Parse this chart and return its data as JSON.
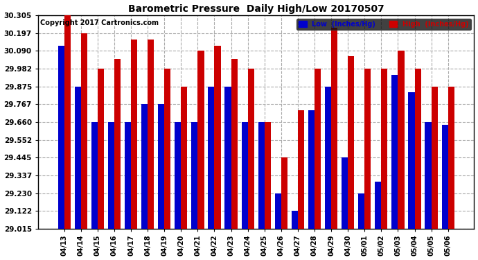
{
  "title": "Barometric Pressure  Daily High/Low 20170507",
  "copyright": "Copyright 2017 Cartronics.com",
  "legend_low": "Low  (Inches/Hg)",
  "legend_high": "High  (Inches/Hg)",
  "low_color": "#0000cc",
  "high_color": "#cc0000",
  "background_color": "#ffffff",
  "grid_color": "#aaaaaa",
  "ylim": [
    29.015,
    30.305
  ],
  "yticks": [
    29.015,
    29.122,
    29.23,
    29.337,
    29.445,
    29.552,
    29.66,
    29.767,
    29.875,
    29.982,
    30.09,
    30.197,
    30.305
  ],
  "dates": [
    "04/13",
    "04/14",
    "04/15",
    "04/16",
    "04/17",
    "04/18",
    "04/19",
    "04/20",
    "04/21",
    "04/22",
    "04/23",
    "04/24",
    "04/25",
    "04/26",
    "04/27",
    "04/28",
    "04/29",
    "04/30",
    "05/01",
    "05/02",
    "05/03",
    "05/04",
    "05/05",
    "05/06"
  ],
  "high_values": [
    30.305,
    30.197,
    29.982,
    30.043,
    30.16,
    30.16,
    29.982,
    29.875,
    30.09,
    30.12,
    30.043,
    29.982,
    29.66,
    29.445,
    29.73,
    29.982,
    30.23,
    30.06,
    29.982,
    29.982,
    30.09,
    29.982,
    29.875,
    29.875
  ],
  "low_values": [
    30.12,
    29.875,
    29.66,
    29.66,
    29.66,
    29.767,
    29.767,
    29.66,
    29.66,
    29.875,
    29.875,
    29.66,
    29.66,
    29.23,
    29.122,
    29.73,
    29.875,
    29.445,
    29.23,
    29.3,
    29.945,
    29.84,
    29.66,
    29.645
  ]
}
